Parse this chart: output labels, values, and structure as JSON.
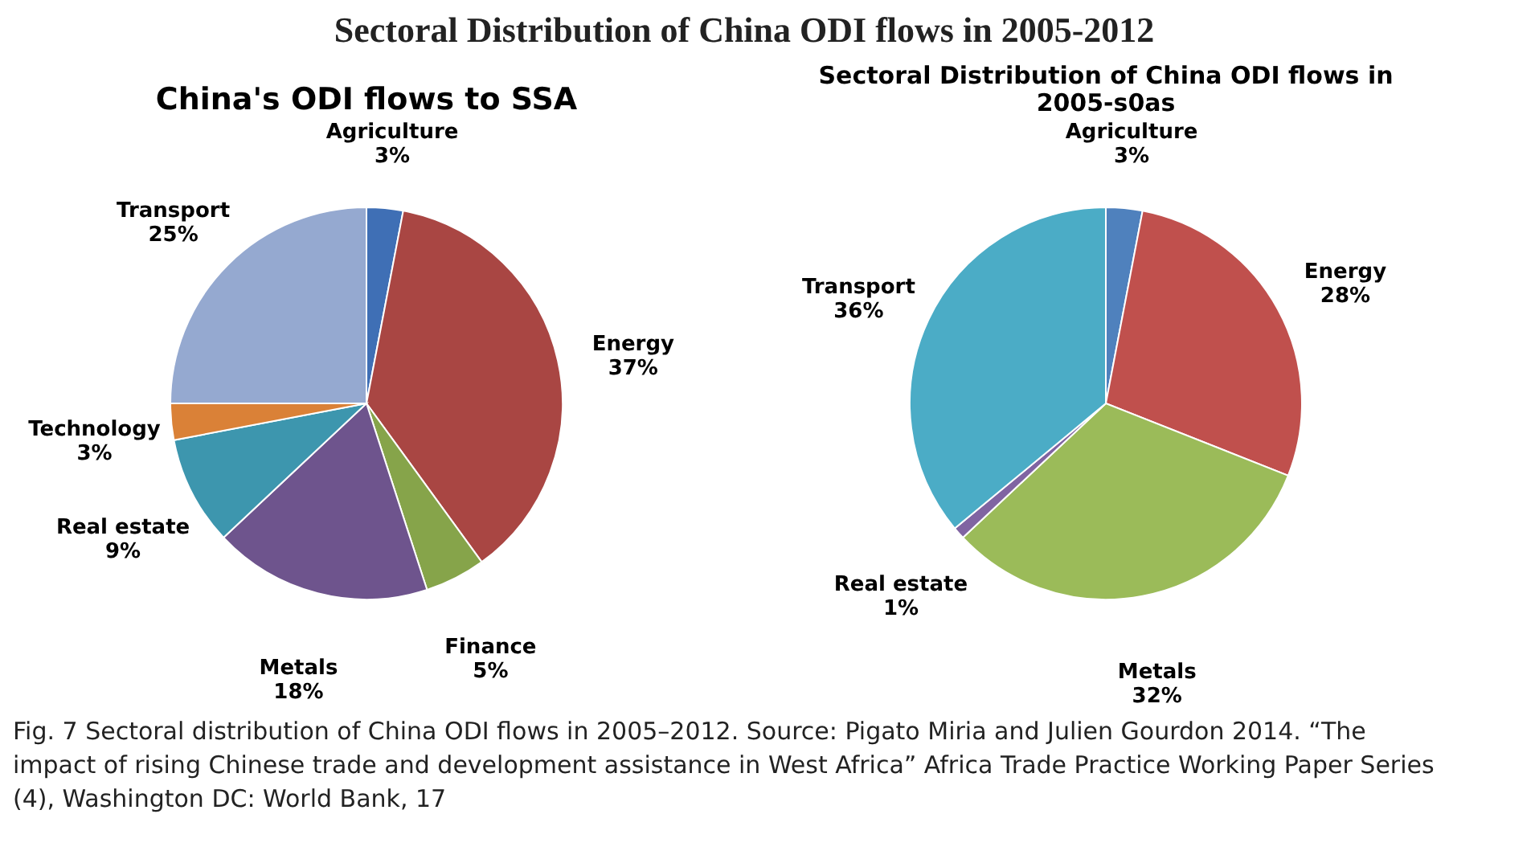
{
  "chart_data": [
    {
      "type": "pie",
      "title": "China's ODI flows to SSA",
      "annotations": [
        "Sectoral Distribution of China ODI flows in 2005-2012",
        "Fig. 7  Sectoral distribution of China ODI flows in 2005–2012. Source: Pigato Miria and Julien Gourdon 2014. “The impact of rising Chinese trade and development assistance in West Africa” Africa Trade Practice Working Paper Series (4), Washington DC: World Bank, 17"
      ],
      "categories": [
        "Agriculture",
        "Energy",
        "Finance",
        "Metals",
        "Real estate",
        "Technology",
        "Transport"
      ],
      "values": [
        3,
        37,
        5,
        18,
        9,
        3,
        25
      ],
      "value_labels": [
        "3%",
        "37%",
        "5%",
        "18%",
        "9%",
        "3%",
        "25%"
      ],
      "colors": [
        "#3f6fb5",
        "#a94643",
        "#86a44a",
        "#6e548d",
        "#3d96ae",
        "#da8137",
        "#95a9d0"
      ]
    },
    {
      "type": "pie",
      "title": "Sectoral Distribution of China ODI flows in 2005-s0as",
      "categories": [
        "Agriculture",
        "Energy",
        "Metals",
        "Real estate",
        "Transport"
      ],
      "values": [
        3,
        28,
        32,
        1,
        36
      ],
      "value_labels": [
        "3%",
        "28%",
        "32%",
        "1%",
        "36%"
      ],
      "colors": [
        "#4f81bd",
        "#c0504d",
        "#9bbb59",
        "#8064a2",
        "#4bacc6"
      ]
    }
  ]
}
